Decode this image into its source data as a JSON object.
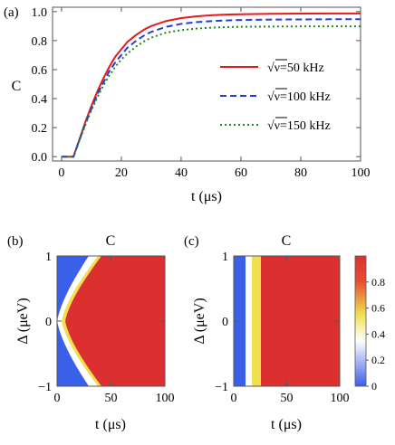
{
  "chart_data": [
    {
      "panel": "(a)",
      "type": "line",
      "title": "",
      "xlabel": "t (μs)",
      "ylabel": "C",
      "xlim": [
        -3,
        100
      ],
      "ylim": [
        -0.03,
        1.03
      ],
      "xticks": [
        0,
        20,
        40,
        60,
        80,
        100
      ],
      "yticks": [
        0.0,
        0.2,
        0.4,
        0.6,
        0.8,
        1.0
      ],
      "grid": false,
      "legend_position": "right-center",
      "legend_prefix": "√ν",
      "series": [
        {
          "name": "=50 kHz",
          "color": "#e41a1c",
          "dash": "solid",
          "x": [
            0,
            4,
            6,
            8,
            10,
            12,
            14,
            16,
            18,
            20,
            22,
            25,
            28,
            30,
            35,
            40,
            45,
            50,
            55,
            60,
            70,
            80,
            90,
            100
          ],
          "y": [
            0.0,
            0.0,
            0.12,
            0.24,
            0.35,
            0.45,
            0.54,
            0.62,
            0.69,
            0.74,
            0.79,
            0.84,
            0.88,
            0.9,
            0.935,
            0.955,
            0.967,
            0.975,
            0.979,
            0.982,
            0.985,
            0.986,
            0.987,
            0.987
          ]
        },
        {
          "name": "=100 kHz",
          "color": "#1f3fd8",
          "dash": "dashed",
          "x": [
            0,
            4,
            6,
            8,
            10,
            12,
            14,
            16,
            18,
            20,
            22,
            25,
            28,
            30,
            35,
            40,
            45,
            50,
            55,
            60,
            70,
            80,
            90,
            100
          ],
          "y": [
            0.0,
            0.0,
            0.115,
            0.23,
            0.33,
            0.43,
            0.51,
            0.59,
            0.65,
            0.7,
            0.75,
            0.8,
            0.84,
            0.86,
            0.895,
            0.915,
            0.927,
            0.934,
            0.939,
            0.942,
            0.945,
            0.946,
            0.947,
            0.947
          ]
        },
        {
          "name": "=150 kHz",
          "color": "#1e8a1e",
          "dash": "dotted",
          "x": [
            0,
            4,
            6,
            8,
            10,
            12,
            14,
            16,
            18,
            20,
            22,
            25,
            28,
            30,
            35,
            40,
            45,
            50,
            55,
            60,
            70,
            80,
            90,
            100
          ],
          "y": [
            0.0,
            0.0,
            0.11,
            0.22,
            0.32,
            0.41,
            0.49,
            0.56,
            0.62,
            0.67,
            0.71,
            0.76,
            0.8,
            0.82,
            0.855,
            0.872,
            0.883,
            0.889,
            0.893,
            0.895,
            0.897,
            0.898,
            0.898,
            0.898
          ]
        }
      ]
    },
    {
      "panel": "(b)",
      "type": "heatmap",
      "title": "C",
      "xlabel": "t (μs)",
      "ylabel": "Δ (μeV)",
      "xlim": [
        0,
        100
      ],
      "ylim": [
        -1,
        1
      ],
      "xticks": [
        0,
        50,
        100
      ],
      "yticks": [
        -1,
        0,
        1
      ],
      "description_values": {
        "rise_time_at_zero_detuning_us": 10,
        "rise_time_at_edge_detuning_us": 45
      }
    },
    {
      "panel": "(c)",
      "type": "heatmap",
      "title": "C",
      "xlabel": "t (μs)",
      "ylabel": "Δ (μeV)",
      "xlim": [
        0,
        100
      ],
      "ylim": [
        -1,
        1
      ],
      "xticks": [
        0,
        50,
        100
      ],
      "yticks": [
        -1,
        0,
        1
      ],
      "colorbar": {
        "ticks": [
          0,
          0.2,
          0.4,
          0.6,
          0.8
        ],
        "range": [
          0,
          1
        ],
        "stops": [
          "#3a5fe8",
          "#ffffff",
          "#f0e050",
          "#dc3030"
        ]
      }
    }
  ]
}
